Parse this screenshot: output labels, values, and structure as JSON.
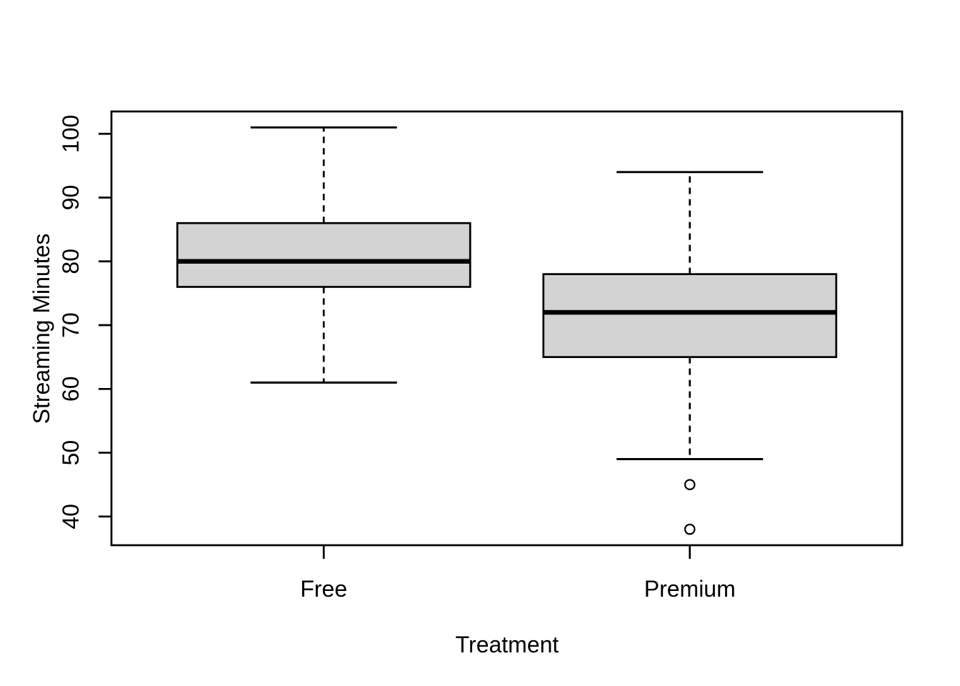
{
  "figure": {
    "background": "#ffffff"
  },
  "chart_data": {
    "type": "boxplot",
    "title": "",
    "xlabel": "Treatment",
    "ylabel": "Streaming Minutes",
    "categories": [
      "Free",
      "Premium"
    ],
    "y_ticks": [
      40,
      50,
      60,
      70,
      80,
      90,
      100
    ],
    "ylim": [
      35.5,
      103.5
    ],
    "grid": "off",
    "legend": "none",
    "box_fill": "#d3d3d3",
    "line_color": "#000000",
    "series": [
      {
        "name": "Free",
        "lower_whisker": 61,
        "q1": 76,
        "median": 80,
        "q3": 86,
        "upper_whisker": 101,
        "outliers": []
      },
      {
        "name": "Premium",
        "lower_whisker": 49,
        "q1": 65,
        "median": 72,
        "q3": 78,
        "upper_whisker": 94,
        "outliers": [
          45,
          38
        ]
      }
    ]
  }
}
